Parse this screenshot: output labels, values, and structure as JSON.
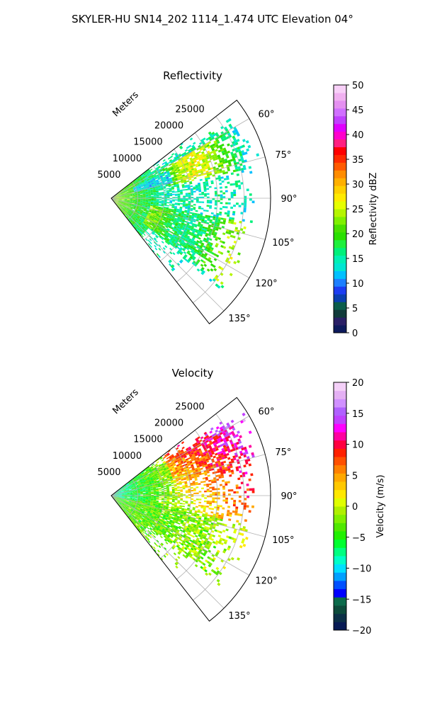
{
  "figure": {
    "suptitle": "SKYLER-HU  SN14_202  1114_1.474 UTC Elevation 04°"
  },
  "chart_data": [
    {
      "type": "heatmap",
      "title": "Reflectivity",
      "projection": "polar-sector",
      "range_axis_label": "Meters",
      "range_ticks": [
        5000,
        10000,
        15000,
        20000,
        25000
      ],
      "range_tick_labels": [
        "5000",
        "10000",
        "15000",
        "20000",
        "25000"
      ],
      "range_max": 30000,
      "azimuth_range_deg": [
        52,
        142
      ],
      "azimuth_ticks": [
        60,
        75,
        90,
        105,
        120,
        135
      ],
      "azimuth_tick_labels": [
        "60°",
        "75°",
        "90°",
        "105°",
        "120°",
        "135°"
      ],
      "grid": true,
      "colorbar": {
        "label": "Reflectivity dBZ",
        "range": [
          0,
          50
        ],
        "ticks": [
          0,
          5,
          10,
          15,
          20,
          25,
          30,
          35,
          40,
          45,
          50
        ],
        "tick_labels": [
          "0",
          "5",
          "10",
          "15",
          "20",
          "25",
          "30",
          "35",
          "40",
          "45",
          "50"
        ]
      },
      "approx_field": [
        {
          "region": "near range (0–5000 m), all azimuths",
          "value": 23
        },
        {
          "region": "around 90°, 5000–12000 m",
          "value": 16
        },
        {
          "region": "band near 70°, 5000–10000 m",
          "value": 14
        },
        {
          "region": "60°–75°, 15000–25000 m",
          "value": 22
        },
        {
          "region": "105°–125°, 10000–18000 m",
          "value": 21
        }
      ]
    },
    {
      "type": "heatmap",
      "title": "Velocity",
      "projection": "polar-sector",
      "range_axis_label": "Meters",
      "range_ticks": [
        5000,
        10000,
        15000,
        20000,
        25000
      ],
      "range_tick_labels": [
        "5000",
        "10000",
        "15000",
        "20000",
        "25000"
      ],
      "range_max": 30000,
      "azimuth_range_deg": [
        52,
        142
      ],
      "azimuth_ticks": [
        60,
        75,
        90,
        105,
        120,
        135
      ],
      "azimuth_tick_labels": [
        "60°",
        "75°",
        "90°",
        "105°",
        "120°",
        "135°"
      ],
      "grid": true,
      "colorbar": {
        "label": "Velocity (m/s)",
        "range": [
          -20,
          20
        ],
        "ticks": [
          -20,
          -15,
          -10,
          -5,
          0,
          5,
          10,
          15,
          20
        ],
        "tick_labels": [
          "−20",
          "−15",
          "−10",
          "−5",
          "0",
          "5",
          "10",
          "15",
          "20"
        ]
      },
      "approx_field": [
        {
          "region": "near range (0–6000 m)",
          "value": -6
        },
        {
          "region": "90°, 6000–15000 m",
          "value": 0
        },
        {
          "region": "75°–90°, 15000–22000 m",
          "value": 4
        },
        {
          "region": "60°–72°, 18000–28000 m",
          "value": 9
        },
        {
          "region": "110°–130°, 10000–18000 m",
          "value": -3
        }
      ]
    }
  ]
}
